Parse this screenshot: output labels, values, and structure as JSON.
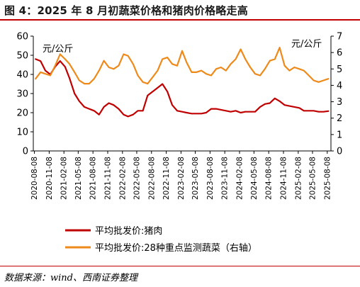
{
  "title": "图 4：2025 年 8 月初蔬菜价格和猪肉价格略走高",
  "source": "数据来源：wind、西南证券整理",
  "colors": {
    "pork": "#c00000",
    "veg": "#ee8a1a",
    "rule": "#c00000"
  },
  "chart_data": {
    "type": "line",
    "left_unit": "元/公斤",
    "right_unit": "元/公斤",
    "y_left_lim": [
      0,
      60
    ],
    "y_left_ticks": [
      "0",
      "10",
      "20",
      "30",
      "40",
      "50",
      "60"
    ],
    "y_right_lim": [
      0,
      7
    ],
    "y_right_ticks": [
      "0",
      "1",
      "2",
      "3",
      "4",
      "5",
      "6",
      "7"
    ],
    "x_ticks": [
      "2020-08-08",
      "2020-11-08",
      "2021-02-08",
      "2021-05-08",
      "2021-08-08",
      "2021-11-08",
      "2022-02-08",
      "2022-05-08",
      "2022-08-08",
      "2022-11-08",
      "2023-02-08",
      "2023-05-08",
      "2023-08-08",
      "2023-11-08",
      "2024-02-08",
      "2024-05-08",
      "2024-08-08",
      "2024-11-08",
      "2025-02-08",
      "2025-05-08",
      "2025-08-08"
    ],
    "grid": false,
    "legend_position": "bottom",
    "series": [
      {
        "name": "平均批发价:猪肉",
        "axis": "left",
        "x": [
          "2020-08",
          "2020-09",
          "2020-10",
          "2020-11",
          "2020-12",
          "2021-01",
          "2021-02",
          "2021-03",
          "2021-04",
          "2021-05",
          "2021-06",
          "2021-07",
          "2021-08",
          "2021-09",
          "2021-10",
          "2021-11",
          "2021-12",
          "2022-01",
          "2022-02",
          "2022-03",
          "2022-04",
          "2022-05",
          "2022-06",
          "2022-07",
          "2022-08",
          "2022-09",
          "2022-10",
          "2022-11",
          "2022-12",
          "2023-01",
          "2023-02",
          "2023-03",
          "2023-04",
          "2023-05",
          "2023-06",
          "2023-07",
          "2023-08",
          "2023-09",
          "2023-10",
          "2023-11",
          "2023-12",
          "2024-01",
          "2024-02",
          "2024-03",
          "2024-04",
          "2024-05",
          "2024-06",
          "2024-07",
          "2024-08",
          "2024-09",
          "2024-10",
          "2024-11",
          "2024-12",
          "2025-01",
          "2025-02",
          "2025-03",
          "2025-04",
          "2025-05",
          "2025-06",
          "2025-07",
          "2025-08"
        ],
        "values": [
          48,
          47,
          42,
          40,
          44,
          47,
          44,
          38,
          30,
          26,
          23,
          22,
          21,
          19,
          23,
          25,
          24,
          22,
          19,
          18,
          19,
          21,
          21,
          29,
          31,
          33,
          35,
          31,
          24,
          21,
          20.5,
          20,
          19.5,
          19.5,
          19.5,
          20,
          22,
          22,
          21.5,
          21,
          20.5,
          21,
          20,
          20.5,
          20.5,
          20.5,
          23,
          24.5,
          25,
          27.5,
          26,
          24,
          23.5,
          23,
          22.5,
          21,
          21,
          21,
          20.5,
          20.5,
          20.8
        ]
      },
      {
        "name": "平均批发价:28种重点监测蔬菜（右轴）",
        "axis": "right",
        "x": [
          "2020-08",
          "2020-09",
          "2020-10",
          "2020-11",
          "2020-12",
          "2021-01",
          "2021-02",
          "2021-03",
          "2021-04",
          "2021-05",
          "2021-06",
          "2021-07",
          "2021-08",
          "2021-09",
          "2021-10",
          "2021-11",
          "2021-12",
          "2022-01",
          "2022-02",
          "2022-03",
          "2022-04",
          "2022-05",
          "2022-06",
          "2022-07",
          "2022-08",
          "2022-09",
          "2022-10",
          "2022-11",
          "2022-12",
          "2023-01",
          "2023-02",
          "2023-03",
          "2023-04",
          "2023-05",
          "2023-06",
          "2023-07",
          "2023-08",
          "2023-09",
          "2023-10",
          "2023-11",
          "2023-12",
          "2024-01",
          "2024-02",
          "2024-03",
          "2024-04",
          "2024-05",
          "2024-06",
          "2024-07",
          "2024-08",
          "2024-09",
          "2024-10",
          "2024-11",
          "2024-12",
          "2025-01",
          "2025-02",
          "2025-03",
          "2025-04",
          "2025-05",
          "2025-06",
          "2025-07",
          "2025-08"
        ],
        "values": [
          4.4,
          4.8,
          4.7,
          4.6,
          5.2,
          5.9,
          5.6,
          5.3,
          4.8,
          4.3,
          4.1,
          4.1,
          4.4,
          4.9,
          5.5,
          5.1,
          5.0,
          5.2,
          5.9,
          5.8,
          5.3,
          4.6,
          4.2,
          4.1,
          4.5,
          4.9,
          5.6,
          5.7,
          5.3,
          5.2,
          6.1,
          5.4,
          4.8,
          4.8,
          4.9,
          4.7,
          4.6,
          5.0,
          5.1,
          4.9,
          5.3,
          5.6,
          6.2,
          5.6,
          5.1,
          4.7,
          4.6,
          5.0,
          5.5,
          5.6,
          6.3,
          5.2,
          4.9,
          5.1,
          5.0,
          4.9,
          4.6,
          4.3,
          4.2,
          4.3,
          4.4
        ]
      }
    ]
  }
}
